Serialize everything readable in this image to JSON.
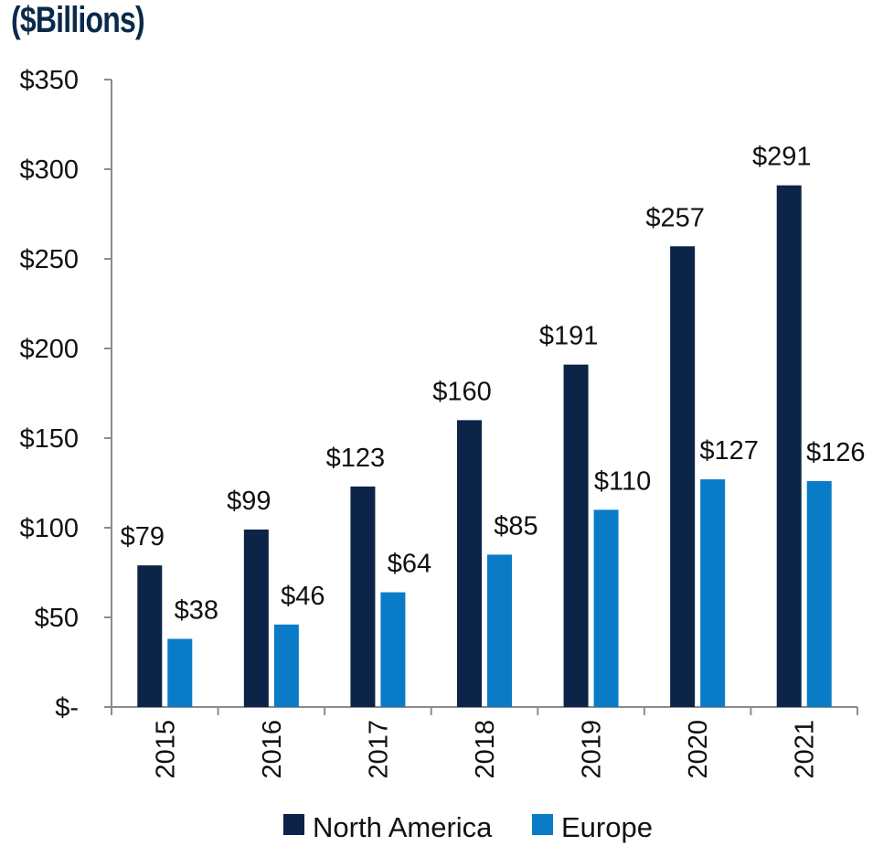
{
  "chart_data": {
    "type": "bar",
    "title": "($Billions)",
    "categories": [
      "2015",
      "2016",
      "2017",
      "2018",
      "2019",
      "2020",
      "2021"
    ],
    "series": [
      {
        "name": "North America",
        "color": "#0b2447",
        "values": [
          79,
          99,
          123,
          160,
          191,
          257,
          291
        ],
        "labels": [
          "$79",
          "$99",
          "$123",
          "$160",
          "$191",
          "$257",
          "$291"
        ]
      },
      {
        "name": "Europe",
        "color": "#0a7cc7",
        "values": [
          38,
          46,
          64,
          85,
          110,
          127,
          126
        ],
        "labels": [
          "$38",
          "$46",
          "$64",
          "$85",
          "$110",
          "$127",
          "$126"
        ]
      }
    ],
    "ylim": [
      0,
      350
    ],
    "yticks": [
      0,
      50,
      100,
      150,
      200,
      250,
      300,
      350
    ],
    "ytick_labels": [
      "$-",
      "$50",
      "$100",
      "$150",
      "$200",
      "$250",
      "$300",
      "$350"
    ],
    "grid": false,
    "legend_position": "bottom"
  }
}
